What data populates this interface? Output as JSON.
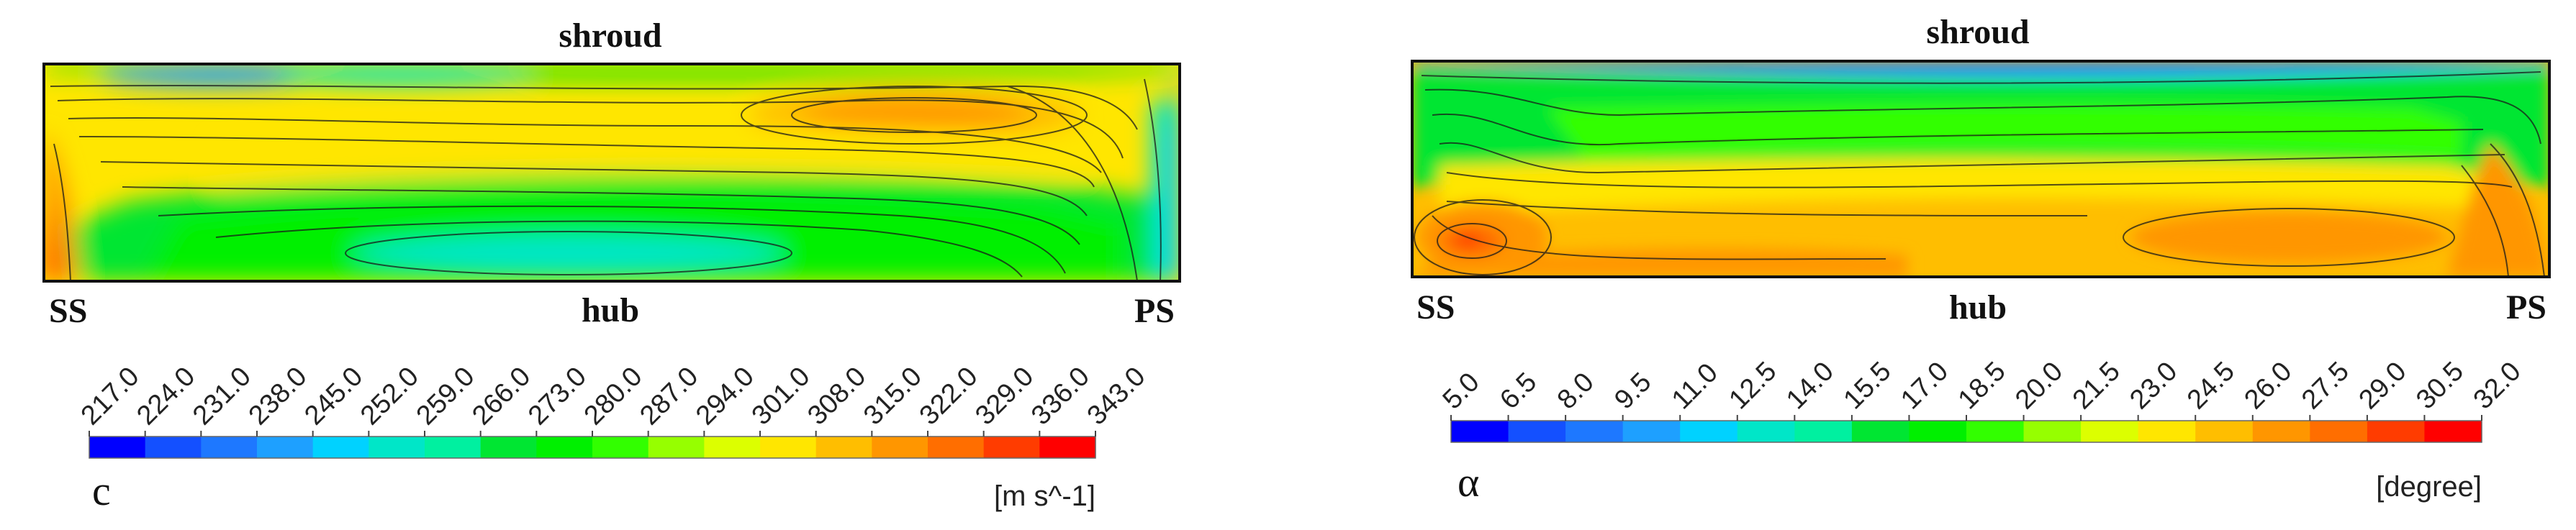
{
  "chart_data": [
    {
      "type": "heatmap",
      "variable": "c",
      "units": "[m s^-1]",
      "top_label": "shroud",
      "bottom_label": "hub",
      "left_label": "SS",
      "right_label": "PS",
      "colorbar_ticks": [
        "217.0",
        "224.0",
        "231.0",
        "238.0",
        "245.0",
        "252.0",
        "259.0",
        "266.0",
        "273.0",
        "280.0",
        "287.0",
        "294.0",
        "301.0",
        "308.0",
        "315.0",
        "322.0",
        "329.0",
        "336.0",
        "343.0"
      ],
      "colorbar_range": [
        217.0,
        343.0
      ],
      "colorbar_colors": [
        "#0000ff",
        "#1450ff",
        "#1e78ff",
        "#1ea0ff",
        "#00d2ff",
        "#00e6c8",
        "#00f0a0",
        "#00e632",
        "#00f000",
        "#32ff00",
        "#96ff00",
        "#dcff00",
        "#ffe600",
        "#ffbe00",
        "#ff9600",
        "#ff6e00",
        "#ff3c00",
        "#ff0000"
      ]
    },
    {
      "type": "heatmap",
      "variable": "α",
      "units": "[degree]",
      "top_label": "shroud",
      "bottom_label": "hub",
      "left_label": "SS",
      "right_label": "PS",
      "colorbar_ticks": [
        "5.0",
        "6.5",
        "8.0",
        "9.5",
        "11.0",
        "12.5",
        "14.0",
        "15.5",
        "17.0",
        "18.5",
        "20.0",
        "21.5",
        "23.0",
        "24.5",
        "26.0",
        "27.5",
        "29.0",
        "30.5",
        "32.0"
      ],
      "colorbar_range": [
        5.0,
        32.0
      ],
      "colorbar_colors": [
        "#0000ff",
        "#1450ff",
        "#1e78ff",
        "#1ea0ff",
        "#00d2ff",
        "#00e6c8",
        "#00f0a0",
        "#00e632",
        "#00f000",
        "#32ff00",
        "#96ff00",
        "#dcff00",
        "#ffe600",
        "#ffbe00",
        "#ff9600",
        "#ff6e00",
        "#ff3c00",
        "#ff0000"
      ]
    }
  ]
}
